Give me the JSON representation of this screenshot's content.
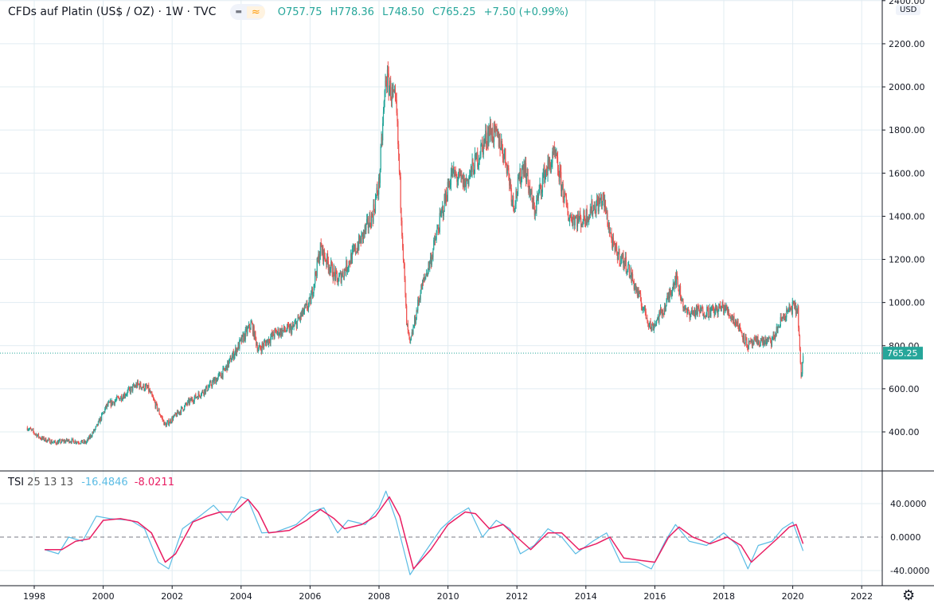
{
  "header": {
    "title": "CFDs auf Platin (US$ / OZ) · 1W · TVC",
    "btn_minus": "▬",
    "btn_wave": "≈",
    "open": "O757.75",
    "high": "H778.36",
    "low": "L748.50",
    "close": "C765.25",
    "change": "+7.50 (+0.99%)"
  },
  "indicator": {
    "name": "TSI",
    "params": "25 13 13",
    "tsi_value": "-16.4846",
    "signal_value": "-8.0211"
  },
  "currency": "USD",
  "settings_icon": "gear-icon",
  "colors": {
    "up": "#26a69a",
    "down": "#ef5350",
    "tsi": "#5bbce4",
    "signal": "#e91e63",
    "grid": "#e1ecf2",
    "price_label": "#26a69a"
  },
  "chart_data": [
    {
      "type": "candlestick",
      "interval": "1W",
      "ylim": [
        250,
        2400
      ],
      "yticks": [
        400,
        600,
        800,
        1000,
        1200,
        1400,
        1600,
        1800,
        2000,
        2200,
        2400
      ],
      "xlim": [
        1997.6,
        2021.9
      ],
      "xticks": [
        "1998",
        "2000",
        "2002",
        "2004",
        "2006",
        "2008",
        "2010",
        "2012",
        "2014",
        "2016",
        "2018",
        "2020",
        "2022"
      ],
      "last_price": 765.25,
      "last_label": "765.25",
      "grid": true,
      "path": [
        [
          1997.8,
          420
        ],
        [
          1998.2,
          370
        ],
        [
          1998.6,
          350
        ],
        [
          1999.0,
          360
        ],
        [
          1999.5,
          350
        ],
        [
          1999.8,
          420
        ],
        [
          2000.1,
          520
        ],
        [
          2000.5,
          560
        ],
        [
          2001.0,
          620
        ],
        [
          2001.3,
          600
        ],
        [
          2001.8,
          430
        ],
        [
          2002.0,
          460
        ],
        [
          2002.5,
          540
        ],
        [
          2003.0,
          600
        ],
        [
          2003.5,
          680
        ],
        [
          2004.0,
          820
        ],
        [
          2004.3,
          900
        ],
        [
          2004.5,
          780
        ],
        [
          2005.0,
          860
        ],
        [
          2005.5,
          880
        ],
        [
          2006.0,
          1000
        ],
        [
          2006.3,
          1250
        ],
        [
          2006.8,
          1100
        ],
        [
          2007.0,
          1150
        ],
        [
          2007.5,
          1300
        ],
        [
          2007.8,
          1400
        ],
        [
          2008.0,
          1550
        ],
        [
          2008.2,
          2050
        ],
        [
          2008.5,
          1900
        ],
        [
          2008.8,
          900
        ],
        [
          2008.9,
          800
        ],
        [
          2009.2,
          1050
        ],
        [
          2009.5,
          1200
        ],
        [
          2009.8,
          1400
        ],
        [
          2010.1,
          1600
        ],
        [
          2010.5,
          1550
        ],
        [
          2010.8,
          1650
        ],
        [
          2011.2,
          1800
        ],
        [
          2011.5,
          1750
        ],
        [
          2011.7,
          1650
        ],
        [
          2011.9,
          1450
        ],
        [
          2012.2,
          1650
        ],
        [
          2012.5,
          1420
        ],
        [
          2012.8,
          1600
        ],
        [
          2013.1,
          1680
        ],
        [
          2013.5,
          1400
        ],
        [
          2013.9,
          1380
        ],
        [
          2014.2,
          1440
        ],
        [
          2014.5,
          1480
        ],
        [
          2014.8,
          1250
        ],
        [
          2015.2,
          1170
        ],
        [
          2015.6,
          1000
        ],
        [
          2015.9,
          880
        ],
        [
          2016.3,
          980
        ],
        [
          2016.6,
          1120
        ],
        [
          2016.9,
          950
        ],
        [
          2017.3,
          960
        ],
        [
          2017.7,
          960
        ],
        [
          2018.0,
          980
        ],
        [
          2018.4,
          900
        ],
        [
          2018.7,
          800
        ],
        [
          2019.0,
          820
        ],
        [
          2019.4,
          820
        ],
        [
          2019.7,
          930
        ],
        [
          2020.0,
          980
        ],
        [
          2020.15,
          960
        ],
        [
          2020.25,
          620
        ],
        [
          2020.3,
          765.25
        ]
      ]
    },
    {
      "type": "line",
      "name": "TSI 25 13 13",
      "ylim": [
        -50,
        70
      ],
      "yticks": [
        40,
        0,
        -40
      ],
      "ytick_labels": [
        "40.0000",
        "0.0000",
        "-40.0000"
      ],
      "zero_line": true,
      "series": [
        {
          "name": "TSI",
          "points": [
            [
              1998.3,
              -15
            ],
            [
              1998.7,
              -20
            ],
            [
              1999.0,
              0
            ],
            [
              1999.4,
              -5
            ],
            [
              1999.8,
              25
            ],
            [
              2000.2,
              22
            ],
            [
              2000.8,
              20
            ],
            [
              2001.2,
              10
            ],
            [
              2001.6,
              -30
            ],
            [
              2001.9,
              -38
            ],
            [
              2002.3,
              10
            ],
            [
              2002.8,
              25
            ],
            [
              2003.2,
              38
            ],
            [
              2003.6,
              20
            ],
            [
              2004.0,
              48
            ],
            [
              2004.2,
              45
            ],
            [
              2004.6,
              5
            ],
            [
              2005.0,
              6
            ],
            [
              2005.6,
              15
            ],
            [
              2006.0,
              30
            ],
            [
              2006.4,
              35
            ],
            [
              2006.8,
              5
            ],
            [
              2007.1,
              20
            ],
            [
              2007.6,
              15
            ],
            [
              2008.0,
              35
            ],
            [
              2008.2,
              55
            ],
            [
              2008.5,
              20
            ],
            [
              2008.9,
              -45
            ],
            [
              2009.3,
              -20
            ],
            [
              2009.8,
              10
            ],
            [
              2010.2,
              25
            ],
            [
              2010.6,
              35
            ],
            [
              2011.0,
              0
            ],
            [
              2011.4,
              20
            ],
            [
              2011.8,
              10
            ],
            [
              2012.1,
              -20
            ],
            [
              2012.5,
              -10
            ],
            [
              2012.9,
              10
            ],
            [
              2013.3,
              0
            ],
            [
              2013.7,
              -20
            ],
            [
              2014.2,
              -5
            ],
            [
              2014.6,
              5
            ],
            [
              2015.0,
              -30
            ],
            [
              2015.5,
              -30
            ],
            [
              2015.9,
              -38
            ],
            [
              2016.3,
              -5
            ],
            [
              2016.6,
              15
            ],
            [
              2017.0,
              -5
            ],
            [
              2017.5,
              -10
            ],
            [
              2018.0,
              5
            ],
            [
              2018.4,
              -10
            ],
            [
              2018.7,
              -38
            ],
            [
              2019.0,
              -10
            ],
            [
              2019.4,
              -5
            ],
            [
              2019.7,
              10
            ],
            [
              2020.0,
              18
            ],
            [
              2020.2,
              -5
            ],
            [
              2020.3,
              -16.4846
            ]
          ]
        },
        {
          "name": "Signal",
          "points": [
            [
              1998.3,
              -15
            ],
            [
              1998.8,
              -15
            ],
            [
              1999.2,
              -5
            ],
            [
              1999.6,
              -2
            ],
            [
              2000.0,
              20
            ],
            [
              2000.5,
              22
            ],
            [
              2001.0,
              18
            ],
            [
              2001.4,
              5
            ],
            [
              2001.8,
              -30
            ],
            [
              2002.1,
              -20
            ],
            [
              2002.6,
              18
            ],
            [
              2003.0,
              25
            ],
            [
              2003.4,
              30
            ],
            [
              2003.8,
              30
            ],
            [
              2004.2,
              45
            ],
            [
              2004.5,
              30
            ],
            [
              2004.8,
              5
            ],
            [
              2005.4,
              8
            ],
            [
              2005.9,
              20
            ],
            [
              2006.3,
              33
            ],
            [
              2006.7,
              22
            ],
            [
              2007.0,
              10
            ],
            [
              2007.5,
              15
            ],
            [
              2007.9,
              25
            ],
            [
              2008.3,
              48
            ],
            [
              2008.6,
              25
            ],
            [
              2009.0,
              -38
            ],
            [
              2009.5,
              -15
            ],
            [
              2010.0,
              15
            ],
            [
              2010.5,
              30
            ],
            [
              2010.8,
              28
            ],
            [
              2011.2,
              10
            ],
            [
              2011.6,
              15
            ],
            [
              2012.0,
              0
            ],
            [
              2012.4,
              -15
            ],
            [
              2012.9,
              5
            ],
            [
              2013.3,
              5
            ],
            [
              2013.8,
              -15
            ],
            [
              2014.3,
              -8
            ],
            [
              2014.7,
              0
            ],
            [
              2015.1,
              -25
            ],
            [
              2015.6,
              -28
            ],
            [
              2016.0,
              -30
            ],
            [
              2016.4,
              0
            ],
            [
              2016.7,
              12
            ],
            [
              2017.1,
              0
            ],
            [
              2017.6,
              -8
            ],
            [
              2018.1,
              0
            ],
            [
              2018.5,
              -10
            ],
            [
              2018.8,
              -30
            ],
            [
              2019.2,
              -15
            ],
            [
              2019.6,
              0
            ],
            [
              2019.9,
              12
            ],
            [
              2020.1,
              15
            ],
            [
              2020.3,
              -8.0211
            ]
          ]
        }
      ]
    }
  ]
}
